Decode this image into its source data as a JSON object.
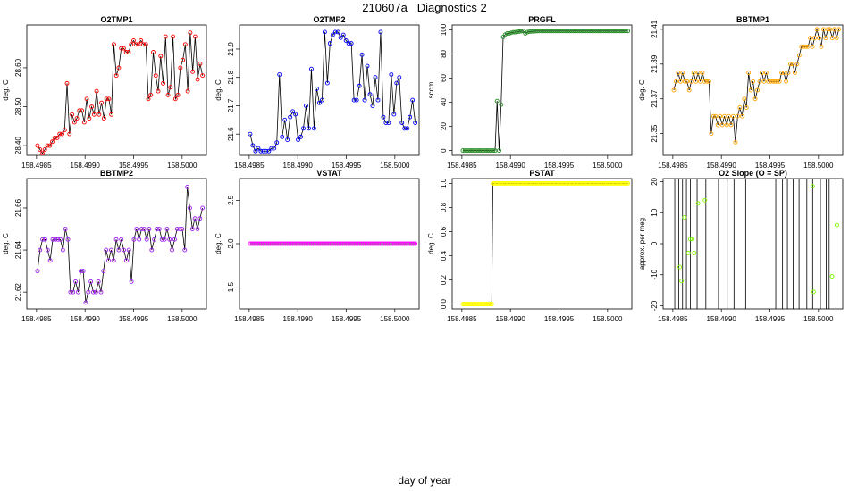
{
  "page": {
    "title": "210607a   Diagnostics 2",
    "xlabel": "day of year"
  },
  "chart_data": [
    {
      "type": "line",
      "title": "O2TMP1",
      "xlabel": "",
      "ylabel": "deg. C",
      "xlim": [
        158.4984,
        158.50025
      ],
      "ylim": [
        28.375,
        28.71
      ],
      "xticks": [
        158.4985,
        158.499,
        158.4995,
        158.5
      ],
      "xtick_labels": [
        "158.4985",
        "158.4990",
        "158.4995",
        "158.5000"
      ],
      "yticks": [
        28.4,
        28.5,
        28.6
      ],
      "ytick_labels": [
        "28.40",
        "28.50",
        "28.60"
      ],
      "line_color": "#000000",
      "marker_color": "#ff0000",
      "series": [
        {
          "name": "O2TMP1",
          "values": [
            28.4,
            28.39,
            28.38,
            28.39,
            28.4,
            28.4,
            28.41,
            28.42,
            28.42,
            28.43,
            28.43,
            28.44,
            28.56,
            28.43,
            28.48,
            28.46,
            28.47,
            28.49,
            28.49,
            28.46,
            28.52,
            28.47,
            28.5,
            28.48,
            28.54,
            28.48,
            28.51,
            28.47,
            28.52,
            28.52,
            28.48,
            28.66,
            28.58,
            28.6,
            28.65,
            28.65,
            28.64,
            28.64,
            28.66,
            28.67,
            28.66,
            28.66,
            28.67,
            28.66,
            28.66,
            28.52,
            28.53,
            28.64,
            28.58,
            28.54,
            28.63,
            28.56,
            28.68,
            28.53,
            28.55,
            28.68,
            28.52,
            28.53,
            28.6,
            28.62,
            28.66,
            28.54,
            28.69,
            28.59,
            28.68,
            28.57,
            28.61,
            28.58
          ]
        }
      ]
    },
    {
      "type": "line",
      "title": "O2TMP2",
      "xlabel": "",
      "ylabel": "deg. C",
      "xlim": [
        158.4984,
        158.50025
      ],
      "ylim": [
        21.525,
        21.985
      ],
      "xticks": [
        158.4985,
        158.499,
        158.4995,
        158.5
      ],
      "xtick_labels": [
        "158.4985",
        "158.4990",
        "158.4995",
        "158.5000"
      ],
      "yticks": [
        21.6,
        21.7,
        21.8,
        21.9
      ],
      "ytick_labels": [
        "21.6",
        "21.7",
        "21.8",
        "21.9"
      ],
      "line_color": "#000000",
      "marker_color": "#0000ff",
      "series": [
        {
          "name": "O2TMP2",
          "values": [
            21.6,
            21.56,
            21.54,
            21.55,
            21.54,
            21.54,
            21.54,
            21.54,
            21.55,
            21.55,
            21.57,
            21.81,
            21.59,
            21.65,
            21.58,
            21.66,
            21.68,
            21.67,
            21.58,
            21.59,
            21.62,
            21.7,
            21.62,
            21.83,
            21.62,
            21.76,
            21.71,
            21.72,
            21.96,
            21.78,
            21.92,
            21.95,
            21.96,
            21.96,
            21.94,
            21.95,
            21.93,
            21.92,
            21.92,
            21.72,
            21.72,
            21.77,
            21.88,
            21.72,
            21.84,
            21.74,
            21.7,
            21.8,
            21.72,
            21.96,
            21.66,
            21.64,
            21.64,
            21.81,
            21.67,
            21.78,
            21.8,
            21.64,
            21.62,
            21.62,
            21.66,
            21.72,
            21.64
          ]
        }
      ]
    },
    {
      "type": "line",
      "title": "PRGFL",
      "xlabel": "",
      "ylabel": "sccm",
      "xlim": [
        158.4984,
        158.50025
      ],
      "ylim": [
        -4,
        104
      ],
      "xticks": [
        158.4985,
        158.499,
        158.4995,
        158.5
      ],
      "xtick_labels": [
        "158.4985",
        "158.4990",
        "158.4995",
        "158.5000"
      ],
      "yticks": [
        0,
        20,
        40,
        60,
        80,
        100
      ],
      "ytick_labels": [
        "0",
        "20",
        "40",
        "60",
        "80",
        "100"
      ],
      "line_color": "#000000",
      "marker_color": "#228b22",
      "series": [
        {
          "name": "PRGFL",
          "values": [
            0,
            0,
            0,
            0,
            0,
            0,
            0,
            0,
            0,
            0,
            0,
            0,
            0,
            0,
            0,
            0,
            0,
            41,
            0,
            38,
            94,
            96,
            97,
            97,
            97.5,
            98,
            98,
            98.3,
            98.5,
            98.8,
            99,
            97,
            98,
            98.4,
            98.6,
            98.7,
            98.8,
            98.9,
            99,
            99,
            99,
            99,
            99,
            99,
            99,
            99,
            99,
            99,
            99,
            99,
            99,
            99,
            99,
            99,
            99,
            99,
            99,
            99,
            99,
            99,
            99,
            99,
            99,
            99,
            99,
            99,
            99,
            99,
            99,
            99,
            99,
            99,
            99,
            99,
            99,
            99,
            99,
            99,
            99,
            99,
            99,
            99,
            99
          ]
        }
      ]
    },
    {
      "type": "line",
      "title": "BBTMP1",
      "xlabel": "",
      "ylabel": "deg. C",
      "xlim": [
        158.4984,
        158.50025
      ],
      "ylim": [
        21.3375,
        21.4125
      ],
      "xticks": [
        158.4985,
        158.499,
        158.4995,
        158.5
      ],
      "xtick_labels": [
        "158.4985",
        "158.4990",
        "158.4995",
        "158.5000"
      ],
      "yticks": [
        21.35,
        21.37,
        21.39,
        21.41
      ],
      "ytick_labels": [
        "21.35",
        "21.37",
        "21.39",
        "21.41"
      ],
      "line_color": "#000000",
      "marker_color": "#ffa500",
      "series": [
        {
          "name": "BBTMP1",
          "values": [
            21.375,
            21.38,
            21.385,
            21.38,
            21.385,
            21.38,
            21.38,
            21.375,
            21.38,
            21.385,
            21.38,
            21.385,
            21.38,
            21.385,
            21.38,
            21.38,
            21.38,
            21.35,
            21.36,
            21.36,
            21.355,
            21.36,
            21.355,
            21.36,
            21.355,
            21.36,
            21.355,
            21.36,
            21.345,
            21.36,
            21.365,
            21.36,
            21.37,
            21.365,
            21.385,
            21.375,
            21.38,
            21.37,
            21.375,
            21.38,
            21.385,
            21.38,
            21.385,
            21.38,
            21.38,
            21.38,
            21.38,
            21.38,
            21.38,
            21.385,
            21.385,
            21.38,
            21.385,
            21.39,
            21.39,
            21.385,
            21.39,
            21.395,
            21.4,
            21.4,
            21.4,
            21.4,
            21.405,
            21.4,
            21.405,
            21.41,
            21.405,
            21.4,
            21.41,
            21.405,
            21.41,
            21.41,
            21.405,
            21.41,
            21.405,
            21.41
          ]
        }
      ]
    },
    {
      "type": "line",
      "title": "BBTMP2",
      "xlabel": "",
      "ylabel": "deg. C",
      "xlim": [
        158.4984,
        158.50025
      ],
      "ylim": [
        21.612,
        21.674
      ],
      "xticks": [
        158.4985,
        158.499,
        158.4995,
        158.5
      ],
      "xtick_labels": [
        "158.4985",
        "158.4990",
        "158.4995",
        "158.5000"
      ],
      "yticks": [
        21.62,
        21.64,
        21.66
      ],
      "ytick_labels": [
        "21.62",
        "21.64",
        "21.66"
      ],
      "line_color": "#000000",
      "marker_color": "#a020f0",
      "series": [
        {
          "name": "BBTMP2",
          "values": [
            21.63,
            21.64,
            21.645,
            21.645,
            21.64,
            21.635,
            21.645,
            21.645,
            21.645,
            21.645,
            21.64,
            21.65,
            21.645,
            21.62,
            21.62,
            21.625,
            21.62,
            21.63,
            21.63,
            21.615,
            21.62,
            21.625,
            21.62,
            21.62,
            21.625,
            21.62,
            21.63,
            21.64,
            21.635,
            21.64,
            21.635,
            21.645,
            21.64,
            21.645,
            21.64,
            21.635,
            21.64,
            21.625,
            21.645,
            21.65,
            21.645,
            21.65,
            21.65,
            21.645,
            21.65,
            21.64,
            21.645,
            21.65,
            21.65,
            21.645,
            21.645,
            21.65,
            21.645,
            21.64,
            21.645,
            21.65,
            21.65,
            21.65,
            21.64,
            21.67,
            21.66,
            21.65,
            21.655,
            21.65,
            21.655,
            21.66
          ]
        }
      ]
    },
    {
      "type": "line",
      "title": "VSTAT",
      "xlabel": "",
      "ylabel": "deg. C",
      "xlim": [
        158.4984,
        158.50025
      ],
      "ylim": [
        1.25,
        2.75
      ],
      "xticks": [
        158.4985,
        158.499,
        158.4995,
        158.5
      ],
      "xtick_labels": [
        "158.4985",
        "158.4990",
        "158.4995",
        "158.5000"
      ],
      "yticks": [
        1.5,
        2.0,
        2.5
      ],
      "ytick_labels": [
        "1.5",
        "2.0",
        "2.5"
      ],
      "line_color": "#000000",
      "marker_color": "#ff00ff",
      "series": [
        {
          "name": "VSTAT",
          "values": [
            2,
            2,
            2,
            2,
            2,
            2,
            2,
            2,
            2,
            2,
            2,
            2,
            2,
            2,
            2,
            2,
            2,
            2,
            2,
            2,
            2,
            2,
            2,
            2,
            2,
            2,
            2,
            2,
            2,
            2,
            2,
            2,
            2,
            2,
            2,
            2,
            2,
            2,
            2,
            2,
            2,
            2,
            2,
            2,
            2,
            2,
            2,
            2,
            2,
            2,
            2,
            2,
            2,
            2,
            2,
            2,
            2,
            2,
            2,
            2,
            2,
            2,
            2,
            2,
            2,
            2,
            2,
            2,
            2,
            2,
            2,
            2,
            2,
            2,
            2,
            2,
            2,
            2,
            2,
            2,
            2,
            2,
            2,
            2,
            2,
            2,
            2,
            2,
            2,
            2
          ]
        }
      ]
    },
    {
      "type": "line",
      "title": "PSTAT",
      "xlabel": "",
      "ylabel": "deg. C",
      "xlim": [
        158.4984,
        158.50025
      ],
      "ylim": [
        -0.04,
        1.04
      ],
      "xticks": [
        158.4985,
        158.499,
        158.4995,
        158.5
      ],
      "xtick_labels": [
        "158.4985",
        "158.4990",
        "158.4995",
        "158.5000"
      ],
      "yticks": [
        0.0,
        0.2,
        0.4,
        0.6,
        0.8,
        1.0
      ],
      "ytick_labels": [
        "0.0",
        "0.2",
        "0.4",
        "0.6",
        "0.8",
        "1.0"
      ],
      "line_color": "#000000",
      "marker_color": "#ffff00",
      "series": [
        {
          "name": "PSTAT",
          "values": [
            0,
            0,
            0,
            0,
            0,
            0,
            0,
            0,
            0,
            0,
            0,
            0,
            0,
            0,
            0,
            0,
            0,
            0,
            0,
            0,
            0,
            0,
            0,
            0,
            0,
            0,
            1,
            1,
            1,
            1,
            1,
            1,
            1,
            1,
            1,
            1,
            1,
            1,
            1,
            1,
            1,
            1,
            1,
            1,
            1,
            1,
            1,
            1,
            1,
            1,
            1,
            1,
            1,
            1,
            1,
            1,
            1,
            1,
            1,
            1,
            1,
            1,
            1,
            1,
            1,
            1,
            1,
            1,
            1,
            1,
            1,
            1,
            1,
            1,
            1,
            1,
            1,
            1,
            1,
            1,
            1,
            1,
            1,
            1,
            1,
            1,
            1,
            1,
            1,
            1,
            1,
            1,
            1,
            1,
            1,
            1,
            1,
            1,
            1,
            1,
            1,
            1,
            1,
            1,
            1,
            1,
            1,
            1,
            1,
            1,
            1,
            1,
            1,
            1,
            1,
            1,
            1,
            1,
            1,
            1,
            1,
            1,
            1,
            1,
            1,
            1,
            1,
            1,
            1,
            1,
            1,
            1,
            1,
            1,
            1,
            1,
            1,
            1,
            1,
            1,
            1,
            1,
            1,
            1
          ]
        }
      ]
    },
    {
      "type": "line",
      "title": "O2 Slope (O = SP)",
      "xlabel": "",
      "ylabel": "approx. per meg",
      "xlim": [
        158.4984,
        158.50025
      ],
      "ylim": [
        -21,
        21
      ],
      "xticks": [
        158.4985,
        158.499,
        158.4995,
        158.5
      ],
      "xtick_labels": [
        "158.4985",
        "158.4990",
        "158.4995",
        "158.5000"
      ],
      "yticks": [
        -20,
        -10,
        0,
        10,
        20
      ],
      "ytick_labels": [
        "-20",
        "-10",
        "0",
        "10",
        "20"
      ],
      "line_color": "#000000",
      "marker_color": "#7cfc00",
      "vlines_x": [
        158.49852,
        158.49856,
        158.4986,
        158.49864,
        158.49868,
        158.49875,
        158.49884,
        158.49897,
        158.49906,
        158.49913,
        158.49925,
        158.49956,
        158.49963,
        158.49968,
        158.49974,
        158.4998,
        158.49988,
        158.49994,
        158.50002,
        158.50008,
        158.50011,
        158.50018
      ],
      "points": [
        {
          "x": 158.49857,
          "y": -7.5
        },
        {
          "x": 158.49859,
          "y": -12
        },
        {
          "x": 158.49862,
          "y": 8.5
        },
        {
          "x": 158.49866,
          "y": -3
        },
        {
          "x": 158.49868,
          "y": 1.5
        },
        {
          "x": 158.4987,
          "y": 1.5
        },
        {
          "x": 158.49872,
          "y": -3
        },
        {
          "x": 158.49876,
          "y": 13
        },
        {
          "x": 158.49883,
          "y": 14
        },
        {
          "x": 158.49994,
          "y": 18.5
        },
        {
          "x": 158.49995,
          "y": -15.5
        },
        {
          "x": 158.50014,
          "y": -10.5
        },
        {
          "x": 158.50019,
          "y": 6
        }
      ]
    }
  ]
}
